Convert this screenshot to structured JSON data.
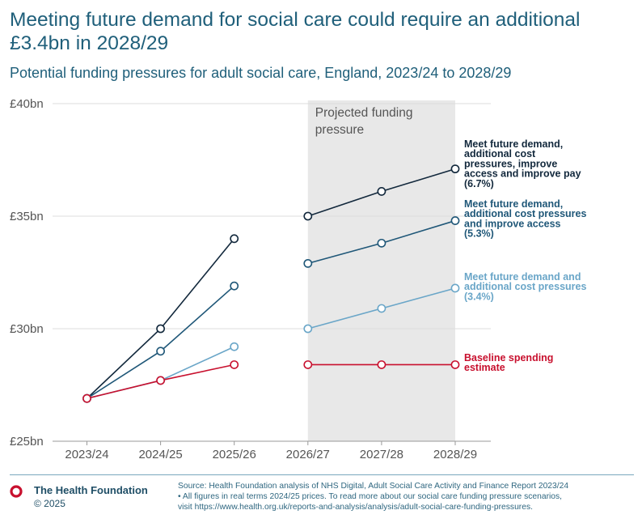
{
  "header": {
    "title": "Meeting future demand for social care could require an additional £3.4bn in 2028/29",
    "subtitle": "Potential funding pressures for adult social care, England, 2023/24 to 2028/29"
  },
  "chart_data": {
    "type": "line",
    "title": "Meeting future demand for social care could require an additional £3.4bn in 2028/29",
    "subtitle": "Potential funding pressures for adult social care, England, 2023/24 to 2028/29",
    "xlabel": "",
    "ylabel": "",
    "ylim": [
      25,
      40
    ],
    "yticks": [
      25,
      30,
      35,
      40
    ],
    "ytick_labels": [
      "£25bn",
      "£30bn",
      "£35bn",
      "£40bn"
    ],
    "categories": [
      "2023/24",
      "2024/25",
      "2025/26",
      "2026/27",
      "2027/28",
      "2028/29"
    ],
    "shaded_region": {
      "from": "2026/27",
      "to": "2028/29",
      "label_lines": [
        "Projected funding",
        "pressure"
      ]
    },
    "series": [
      {
        "name": "Meet future demand, additional cost pressures, improve access and improve pay (6.7%)",
        "label_lines": [
          "Meet future demand,",
          "additional cost",
          "pressures, improve",
          "access and improve pay",
          "(6.7%)"
        ],
        "color": "#12283c",
        "historical": [
          26.9,
          30.0,
          34.0
        ],
        "projected": [
          35.0,
          36.1,
          37.1
        ]
      },
      {
        "name": "Meet future demand, additional cost pressures and improve access (5.3%)",
        "label_lines": [
          "Meet future demand,",
          "additional cost pressures",
          "and improve access",
          "(5.3%)"
        ],
        "color": "#1f5778",
        "historical": [
          26.9,
          29.0,
          31.9
        ],
        "projected": [
          32.9,
          33.8,
          34.8
        ]
      },
      {
        "name": "Meet future demand and additional cost pressures (3.4%)",
        "label_lines": [
          "Meet future demand and",
          "additional cost pressures",
          "(3.4%)"
        ],
        "color": "#6aa6c8",
        "historical": [
          26.9,
          27.7,
          29.2
        ],
        "projected": [
          30.0,
          30.9,
          31.8
        ]
      },
      {
        "name": "Baseline spending estimate",
        "label_lines": [
          "Baseline spending",
          "estimate"
        ],
        "color": "#c8102e",
        "historical": [
          26.9,
          27.7,
          28.4
        ],
        "projected": [
          28.4,
          28.4,
          28.4
        ]
      }
    ]
  },
  "footer": {
    "brand": "The Health Foundation",
    "copyright": "© 2025",
    "logo_color": "#c8102e",
    "source_lines": [
      "Source: Health Foundation analysis of NHS Digital, Adult Social Care Activity and Finance Report 2023/24",
      "• All figures in real terms 2024/25 prices. To read more about our social care funding pressure scenarios,",
      "visit https://www.health.org.uk/reports-and-analysis/analysis/adult-social-care-funding-pressures."
    ]
  }
}
